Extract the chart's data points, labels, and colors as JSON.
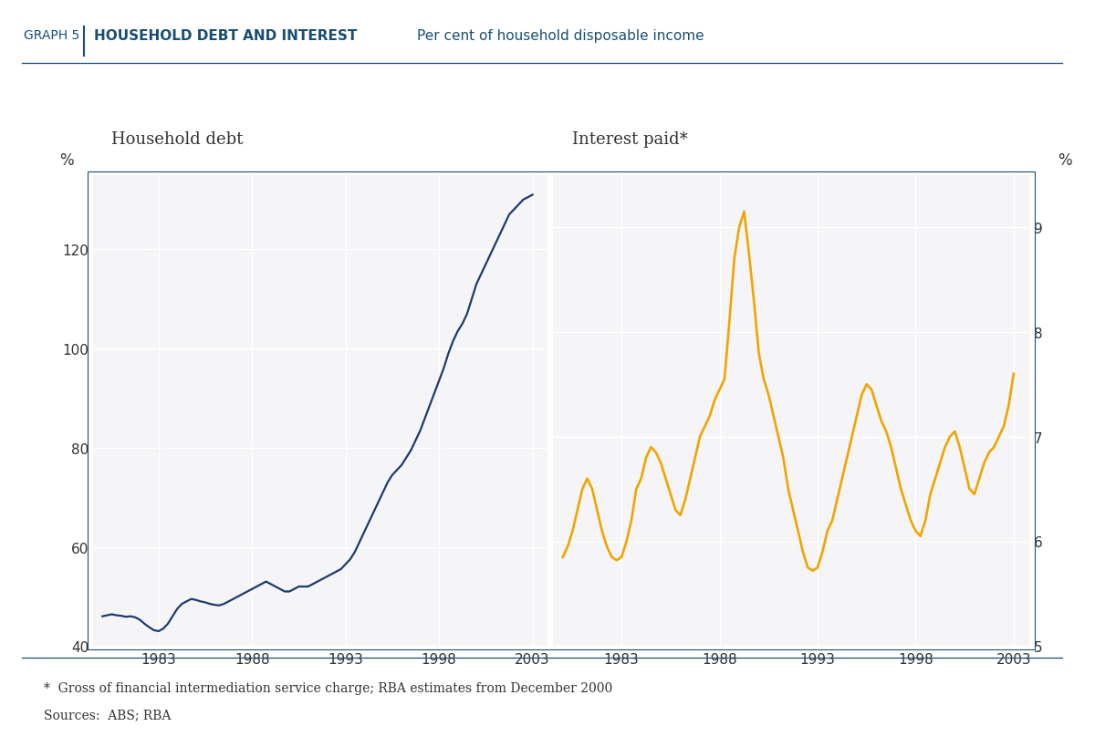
{
  "title_graph": "GRAPH 5",
  "title_bold": "HOUSEHOLD DEBT AND INTEREST",
  "title_sub": "Per cent of household disposable income",
  "label_left": "Household debt",
  "label_right": "Interest paid*",
  "ylabel_left": "%",
  "ylabel_right": "%",
  "footnote1": "*  Gross of financial intermediation service charge; RBA estimates from December 2000",
  "footnote2": "Sources:  ABS; RBA",
  "plot_bg": "#f5f5f8",
  "line_color_debt": "#1e3a6e",
  "line_color_interest": "#f0a500",
  "header_color": "#1a4f72",
  "debt_x": [
    1980.0,
    1980.25,
    1980.5,
    1980.75,
    1981.0,
    1981.25,
    1981.5,
    1981.75,
    1982.0,
    1982.25,
    1982.5,
    1982.75,
    1983.0,
    1983.25,
    1983.5,
    1983.75,
    1984.0,
    1984.25,
    1984.5,
    1984.75,
    1985.0,
    1985.25,
    1985.5,
    1985.75,
    1986.0,
    1986.25,
    1986.5,
    1986.75,
    1987.0,
    1987.25,
    1987.5,
    1987.75,
    1988.0,
    1988.25,
    1988.5,
    1988.75,
    1989.0,
    1989.25,
    1989.5,
    1989.75,
    1990.0,
    1990.25,
    1990.5,
    1990.75,
    1991.0,
    1991.25,
    1991.5,
    1991.75,
    1992.0,
    1992.25,
    1992.5,
    1992.75,
    1993.0,
    1993.25,
    1993.5,
    1993.75,
    1994.0,
    1994.25,
    1994.5,
    1994.75,
    1995.0,
    1995.25,
    1995.5,
    1995.75,
    1996.0,
    1996.25,
    1996.5,
    1996.75,
    1997.0,
    1997.25,
    1997.5,
    1997.75,
    1998.0,
    1998.25,
    1998.5,
    1998.75,
    1999.0,
    1999.25,
    1999.5,
    1999.75,
    2000.0,
    2000.25,
    2000.5,
    2000.75,
    2001.0,
    2001.25,
    2001.5,
    2001.75,
    2002.0,
    2002.25,
    2002.5,
    2002.75,
    2003.0
  ],
  "debt_y": [
    46.0,
    46.2,
    46.4,
    46.2,
    46.1,
    45.9,
    46.0,
    45.8,
    45.3,
    44.5,
    43.8,
    43.2,
    43.0,
    43.5,
    44.5,
    46.0,
    47.5,
    48.5,
    49.0,
    49.5,
    49.3,
    49.0,
    48.8,
    48.5,
    48.3,
    48.2,
    48.5,
    49.0,
    49.5,
    50.0,
    50.5,
    51.0,
    51.5,
    52.0,
    52.5,
    53.0,
    52.5,
    52.0,
    51.5,
    51.0,
    51.0,
    51.5,
    52.0,
    52.0,
    52.0,
    52.5,
    53.0,
    53.5,
    54.0,
    54.5,
    55.0,
    55.5,
    56.5,
    57.5,
    59.0,
    61.0,
    63.0,
    65.0,
    67.0,
    69.0,
    71.0,
    73.0,
    74.5,
    75.5,
    76.5,
    78.0,
    79.5,
    81.5,
    83.5,
    86.0,
    88.5,
    91.0,
    93.5,
    96.0,
    99.0,
    101.5,
    103.5,
    105.0,
    107.0,
    110.0,
    113.0,
    115.0,
    117.0,
    119.0,
    121.0,
    123.0,
    125.0,
    127.0,
    128.0,
    129.0,
    130.0,
    130.5,
    131.0
  ],
  "interest_x": [
    1980.0,
    1980.25,
    1980.5,
    1980.75,
    1981.0,
    1981.25,
    1981.5,
    1981.75,
    1982.0,
    1982.25,
    1982.5,
    1982.75,
    1983.0,
    1983.25,
    1983.5,
    1983.75,
    1984.0,
    1984.25,
    1984.5,
    1984.75,
    1985.0,
    1985.25,
    1985.5,
    1985.75,
    1986.0,
    1986.25,
    1986.5,
    1986.75,
    1987.0,
    1987.25,
    1987.5,
    1987.75,
    1988.0,
    1988.25,
    1988.5,
    1988.75,
    1989.0,
    1989.25,
    1989.5,
    1989.75,
    1990.0,
    1990.25,
    1990.5,
    1990.75,
    1991.0,
    1991.25,
    1991.5,
    1991.75,
    1992.0,
    1992.25,
    1992.5,
    1992.75,
    1993.0,
    1993.25,
    1993.5,
    1993.75,
    1994.0,
    1994.25,
    1994.5,
    1994.75,
    1995.0,
    1995.25,
    1995.5,
    1995.75,
    1996.0,
    1996.25,
    1996.5,
    1996.75,
    1997.0,
    1997.25,
    1997.5,
    1997.75,
    1998.0,
    1998.25,
    1998.5,
    1998.75,
    1999.0,
    1999.25,
    1999.5,
    1999.75,
    2000.0,
    2000.25,
    2000.5,
    2000.75,
    2001.0,
    2001.25,
    2001.5,
    2001.75,
    2002.0,
    2002.25,
    2002.5,
    2002.75,
    2003.0
  ],
  "interest_y": [
    5.85,
    5.95,
    6.1,
    6.3,
    6.5,
    6.6,
    6.5,
    6.3,
    6.1,
    5.95,
    5.85,
    5.82,
    5.85,
    6.0,
    6.2,
    6.5,
    6.6,
    6.8,
    6.9,
    6.85,
    6.75,
    6.6,
    6.45,
    6.3,
    6.25,
    6.4,
    6.6,
    6.8,
    7.0,
    7.1,
    7.2,
    7.35,
    7.45,
    7.55,
    8.1,
    8.7,
    9.0,
    9.15,
    8.75,
    8.3,
    7.8,
    7.55,
    7.4,
    7.2,
    7.0,
    6.8,
    6.5,
    6.3,
    6.1,
    5.9,
    5.75,
    5.72,
    5.75,
    5.9,
    6.1,
    6.2,
    6.4,
    6.6,
    6.8,
    7.0,
    7.2,
    7.4,
    7.5,
    7.45,
    7.3,
    7.15,
    7.05,
    6.9,
    6.7,
    6.5,
    6.35,
    6.2,
    6.1,
    6.05,
    6.2,
    6.45,
    6.6,
    6.75,
    6.9,
    7.0,
    7.05,
    6.9,
    6.7,
    6.5,
    6.45,
    6.6,
    6.75,
    6.85,
    6.9,
    7.0,
    7.1,
    7.3,
    7.6
  ],
  "debt_ylim": [
    40,
    135
  ],
  "debt_yticks": [
    40,
    60,
    80,
    100,
    120
  ],
  "interest_ylim": [
    5.0,
    9.5
  ],
  "interest_yticks": [
    5,
    6,
    7,
    8,
    9
  ],
  "xlim_left": [
    1979.5,
    2003.8
  ],
  "xlim_right": [
    1979.5,
    2003.8
  ],
  "xticks": [
    1983,
    1988,
    1993,
    1998,
    2003
  ]
}
